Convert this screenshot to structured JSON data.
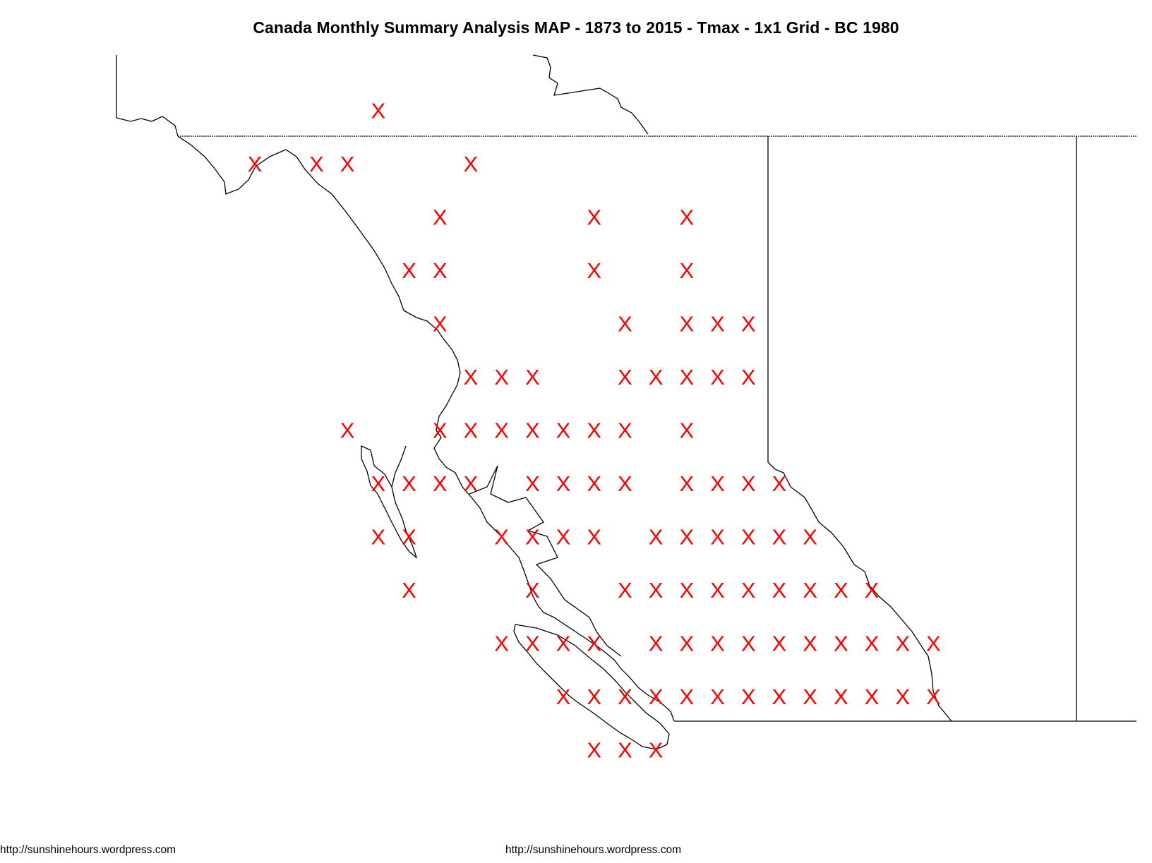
{
  "title": "Canada Monthly Summary Analysis MAP - 1873 to 2015 - Tmax - 1x1 Grid - BC 1980",
  "footer": {
    "left": "http://sunshinehours.wordpress.com",
    "center": "http://sunshinehours.wordpress.com"
  },
  "colors": {
    "marker": "#ff0000",
    "border": "#000000",
    "background": "#ffffff"
  },
  "marker": {
    "glyph": "X"
  },
  "grid_points": [
    [
      4,
      0
    ],
    [
      0,
      1
    ],
    [
      2,
      1
    ],
    [
      3,
      1
    ],
    [
      7,
      1
    ],
    [
      6,
      2
    ],
    [
      11,
      2
    ],
    [
      14,
      2
    ],
    [
      5,
      3
    ],
    [
      6,
      3
    ],
    [
      11,
      3
    ],
    [
      14,
      3
    ],
    [
      6,
      4
    ],
    [
      12,
      4
    ],
    [
      14,
      4
    ],
    [
      15,
      4
    ],
    [
      16,
      4
    ],
    [
      7,
      5
    ],
    [
      8,
      5
    ],
    [
      9,
      5
    ],
    [
      12,
      5
    ],
    [
      13,
      5
    ],
    [
      14,
      5
    ],
    [
      15,
      5
    ],
    [
      16,
      5
    ],
    [
      3,
      6
    ],
    [
      6,
      6
    ],
    [
      7,
      6
    ],
    [
      8,
      6
    ],
    [
      9,
      6
    ],
    [
      10,
      6
    ],
    [
      11,
      6
    ],
    [
      12,
      6
    ],
    [
      14,
      6
    ],
    [
      4,
      7
    ],
    [
      5,
      7
    ],
    [
      6,
      7
    ],
    [
      7,
      7
    ],
    [
      9,
      7
    ],
    [
      10,
      7
    ],
    [
      11,
      7
    ],
    [
      12,
      7
    ],
    [
      14,
      7
    ],
    [
      15,
      7
    ],
    [
      16,
      7
    ],
    [
      17,
      7
    ],
    [
      4,
      8
    ],
    [
      5,
      8
    ],
    [
      8,
      8
    ],
    [
      9,
      8
    ],
    [
      10,
      8
    ],
    [
      11,
      8
    ],
    [
      13,
      8
    ],
    [
      14,
      8
    ],
    [
      15,
      8
    ],
    [
      16,
      8
    ],
    [
      17,
      8
    ],
    [
      18,
      8
    ],
    [
      5,
      9
    ],
    [
      9,
      9
    ],
    [
      12,
      9
    ],
    [
      13,
      9
    ],
    [
      14,
      9
    ],
    [
      15,
      9
    ],
    [
      16,
      9
    ],
    [
      17,
      9
    ],
    [
      18,
      9
    ],
    [
      19,
      9
    ],
    [
      20,
      9
    ],
    [
      8,
      10
    ],
    [
      9,
      10
    ],
    [
      10,
      10
    ],
    [
      11,
      10
    ],
    [
      13,
      10
    ],
    [
      14,
      10
    ],
    [
      15,
      10
    ],
    [
      16,
      10
    ],
    [
      17,
      10
    ],
    [
      18,
      10
    ],
    [
      19,
      10
    ],
    [
      20,
      10
    ],
    [
      21,
      10
    ],
    [
      22,
      10
    ],
    [
      10,
      11
    ],
    [
      11,
      11
    ],
    [
      12,
      11
    ],
    [
      13,
      11
    ],
    [
      14,
      11
    ],
    [
      15,
      11
    ],
    [
      16,
      11
    ],
    [
      17,
      11
    ],
    [
      18,
      11
    ],
    [
      19,
      11
    ],
    [
      20,
      11
    ],
    [
      21,
      11
    ],
    [
      22,
      11
    ],
    [
      11,
      12
    ],
    [
      12,
      12
    ],
    [
      13,
      12
    ]
  ]
}
